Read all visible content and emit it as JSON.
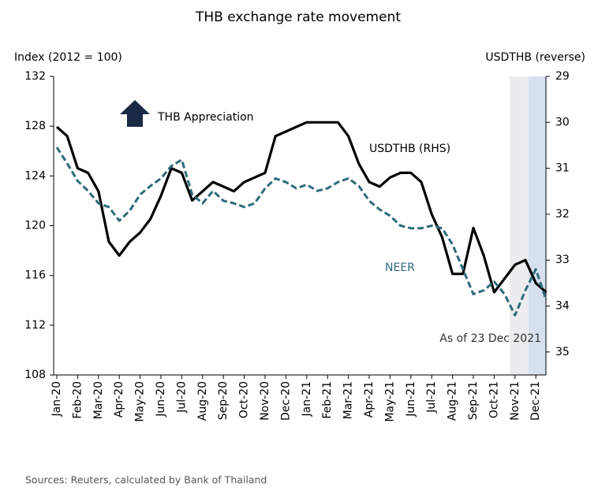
{
  "chart_data": {
    "type": "line",
    "title": "THB exchange rate movement",
    "y_axis_label": "Index (2012 = 100)",
    "y2_axis_label": "USDTHB (reverse)",
    "annotations": [
      "THB Appreciation",
      "As of 23 Dec 2021"
    ],
    "source": "Sources: Reuters, calculated by Bank of Thailand",
    "categories": [
      "Jan-20",
      null,
      "Feb-20",
      null,
      "Mar-20",
      null,
      "Apr-20",
      null,
      "May-20",
      null,
      "Jun-20",
      null,
      "Jul-20",
      null,
      "Aug-20",
      null,
      "Sep-20",
      null,
      "Oct-20",
      null,
      "Nov-20",
      null,
      "Dec-20",
      null,
      "Jan-21",
      null,
      "Feb-21",
      null,
      "Mar-21",
      null,
      "Apr-21",
      null,
      "May-21",
      null,
      "Jun-21",
      null,
      "Jul-21",
      null,
      "Aug-21",
      null,
      "Sep-21",
      null,
      "Oct-21",
      null,
      "Nov-21",
      null,
      "Dec-21",
      null
    ],
    "series": [
      {
        "name": "USDTHB (RHS)",
        "color": "#000000",
        "axis": "y2",
        "dashed": false,
        "values": [
          30.1,
          30.3,
          31.0,
          31.1,
          31.5,
          32.6,
          32.9,
          32.6,
          32.4,
          32.1,
          31.6,
          31.0,
          31.1,
          31.7,
          31.5,
          31.3,
          31.4,
          31.5,
          31.3,
          31.2,
          31.1,
          30.3,
          30.2,
          30.1,
          30.0,
          30.0,
          30.0,
          30.0,
          30.3,
          30.9,
          31.3,
          31.4,
          31.2,
          31.1,
          31.1,
          31.3,
          32.0,
          32.5,
          33.3,
          33.3,
          32.3,
          32.9,
          33.7,
          33.4,
          33.1,
          33.0,
          33.5,
          33.7
        ]
      },
      {
        "name": "NEER",
        "color": "#2e6b7a",
        "dashed": true,
        "values": [
          126.3,
          125.0,
          123.6,
          122.8,
          121.8,
          121.5,
          120.4,
          121.2,
          122.5,
          123.2,
          123.8,
          124.8,
          125.3,
          122.5,
          121.8,
          122.8,
          122.0,
          121.8,
          121.5,
          121.8,
          123.0,
          123.8,
          123.5,
          123.0,
          123.3,
          122.8,
          123.0,
          123.5,
          123.8,
          123.2,
          122.0,
          121.3,
          120.8,
          120.0,
          119.8,
          119.8,
          120.0,
          119.8,
          118.5,
          116.5,
          114.5,
          114.8,
          115.5,
          114.5,
          112.8,
          114.8,
          116.5,
          114.0
        ]
      }
    ],
    "ylim": [
      108,
      132
    ],
    "yticks": [
      108,
      112,
      116,
      120,
      124,
      128,
      132
    ],
    "y2lim": [
      35.5,
      29
    ],
    "y2ticks": [
      29,
      30,
      31,
      32,
      33,
      34,
      35
    ]
  }
}
